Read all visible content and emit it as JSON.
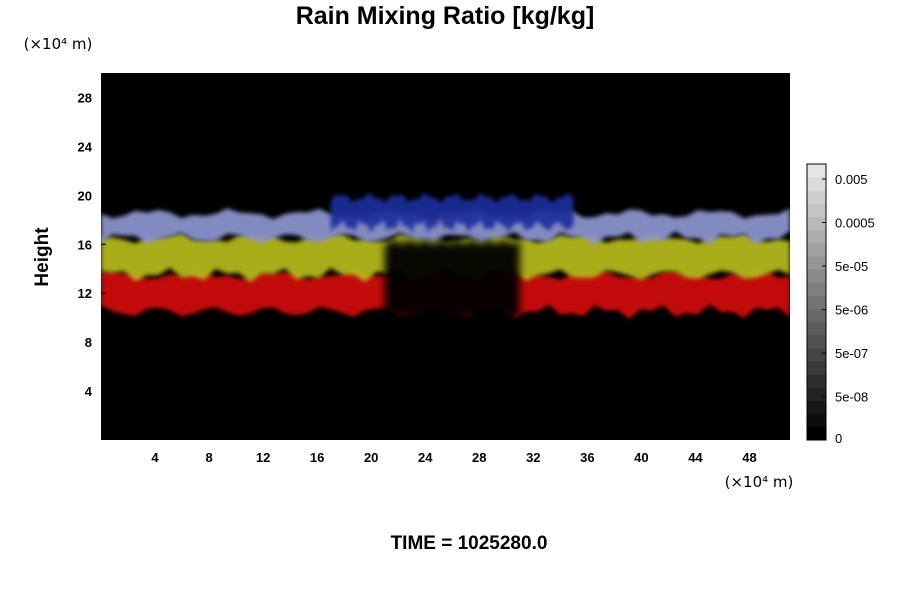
{
  "chart_data": {
    "type": "heatmap",
    "title": "Rain Mixing Ratio [kg/kg]",
    "ylabel": "Height",
    "y_unit": "(×10⁴ m)",
    "x_unit": "(×10⁴ m)",
    "xlim": [
      0,
      51
    ],
    "ylim": [
      0,
      30
    ],
    "x_ticks": [
      4,
      8,
      12,
      16,
      20,
      24,
      28,
      32,
      36,
      40,
      44,
      48
    ],
    "y_ticks": [
      4,
      8,
      12,
      16,
      20,
      24,
      28
    ],
    "colorbar": {
      "label_values": [
        "0",
        "5e-08",
        "5e-07",
        "5e-06",
        "5e-05",
        "0.0005",
        "0.005"
      ],
      "levels": 21,
      "scale": "log"
    },
    "bands": [
      {
        "feature": "lower-edge-red",
        "x_range": [
          0,
          51
        ],
        "y_range": [
          10.5,
          13.5
        ],
        "color": "#d41010"
      },
      {
        "feature": "yellow-band",
        "x_range": [
          0,
          51
        ],
        "y_range": [
          13.5,
          16.5
        ],
        "color": "#b8bc1a"
      },
      {
        "feature": "lavender-band",
        "x_range": [
          0,
          51
        ],
        "y_range": [
          16.5,
          18.5
        ],
        "color": "#8e97d2"
      },
      {
        "feature": "blue-top",
        "x_range": [
          17,
          35
        ],
        "y_range": [
          17.5,
          19.8
        ],
        "color": "#1f2e9c"
      }
    ],
    "time_label": "TIME = 1025280.0"
  }
}
